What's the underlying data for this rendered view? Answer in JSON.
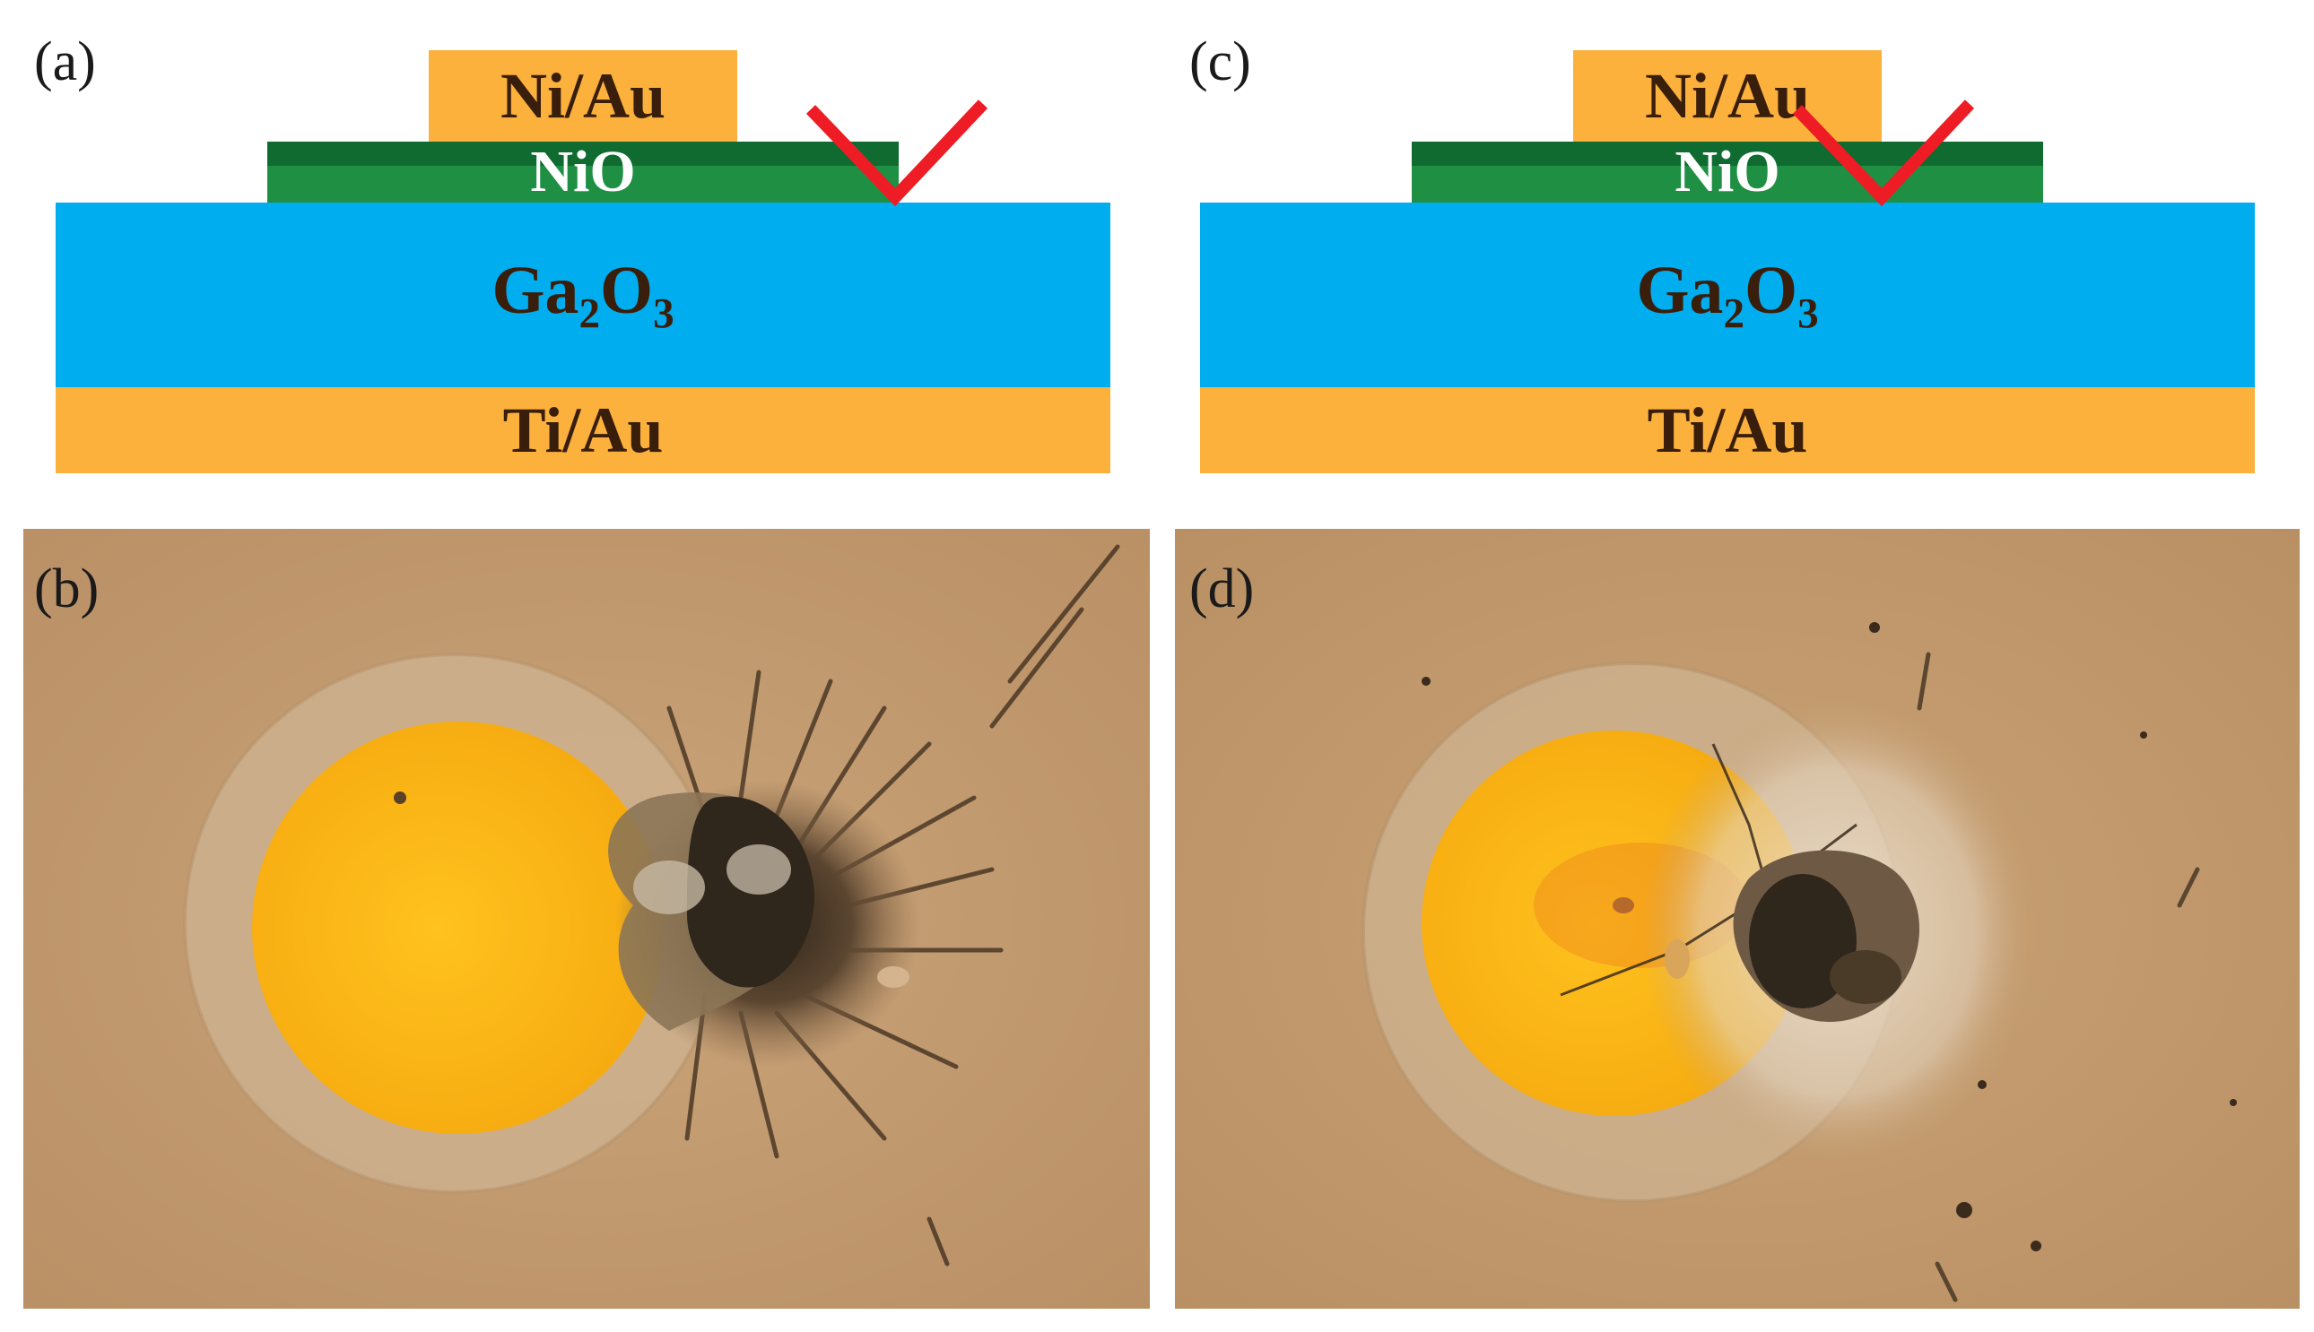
{
  "panels": {
    "a": {
      "label": "(a)",
      "layers": {
        "top_contact": "Ni/Au",
        "oxide": "NiO",
        "substrate_main": "Ga",
        "substrate_sub1": "2",
        "substrate_mid": "O",
        "substrate_sub2": "3",
        "bottom_contact": "Ti/Au"
      }
    },
    "b": {
      "label": "(b)"
    },
    "c": {
      "label": "(c)",
      "layers": {
        "top_contact": "Ni/Au",
        "oxide": "NiO",
        "substrate_main": "Ga",
        "substrate_sub1": "2",
        "substrate_mid": "O",
        "substrate_sub2": "3",
        "bottom_contact": "Ti/Au"
      }
    },
    "d": {
      "label": "(d)"
    }
  },
  "colors": {
    "gold_contact": "#fbb13c",
    "nio_dark": "#0f6b2f",
    "nio_light": "#1f8f44",
    "ga2o3_blue": "#00adef",
    "check_red": "#ee1c24",
    "photo_background": "#c9a276",
    "pad_yellow": "#fcb51b",
    "burn_dark": "#3a2b1c"
  },
  "icons": [
    "checkmark-icon"
  ]
}
